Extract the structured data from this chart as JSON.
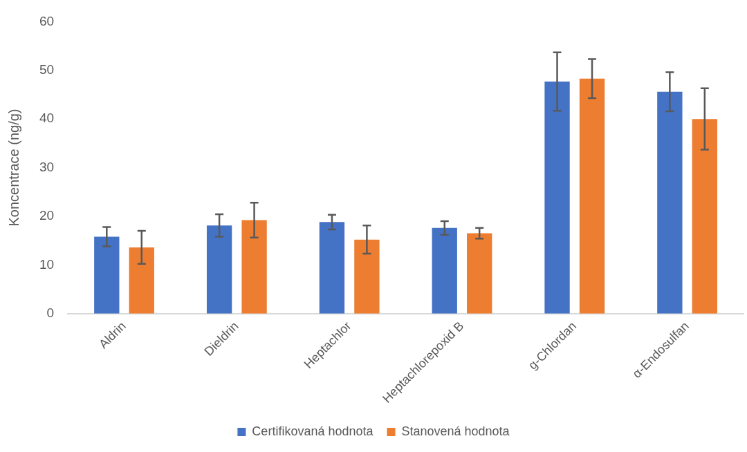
{
  "chart_data": {
    "type": "bar",
    "ylabel": "Koncentrace (ng/g)",
    "categories": [
      "Aldrin",
      "Dieldrin",
      "Heptachlor",
      "Heptachlorepoxid B",
      "g-Chlordan",
      "α-Endosulfan"
    ],
    "series": [
      {
        "name": "Certifikovaná hodnota",
        "color": "#4472c4",
        "values": [
          15.8,
          18.1,
          18.8,
          17.6,
          47.7,
          45.6
        ],
        "errors": [
          2,
          2.3,
          1.5,
          1.4,
          6,
          4
        ]
      },
      {
        "name": "Stanovená hodnota",
        "color": "#ed7d31",
        "values": [
          13.6,
          19.2,
          15.2,
          16.5,
          48.3,
          40.0
        ],
        "errors": [
          3.4,
          3.6,
          2.9,
          1.1,
          4,
          6.3
        ]
      }
    ],
    "ylim": [
      0,
      60
    ],
    "yticks": [
      0,
      10,
      20,
      30,
      40,
      50,
      60
    ],
    "grid": false,
    "legend": "bottom"
  }
}
